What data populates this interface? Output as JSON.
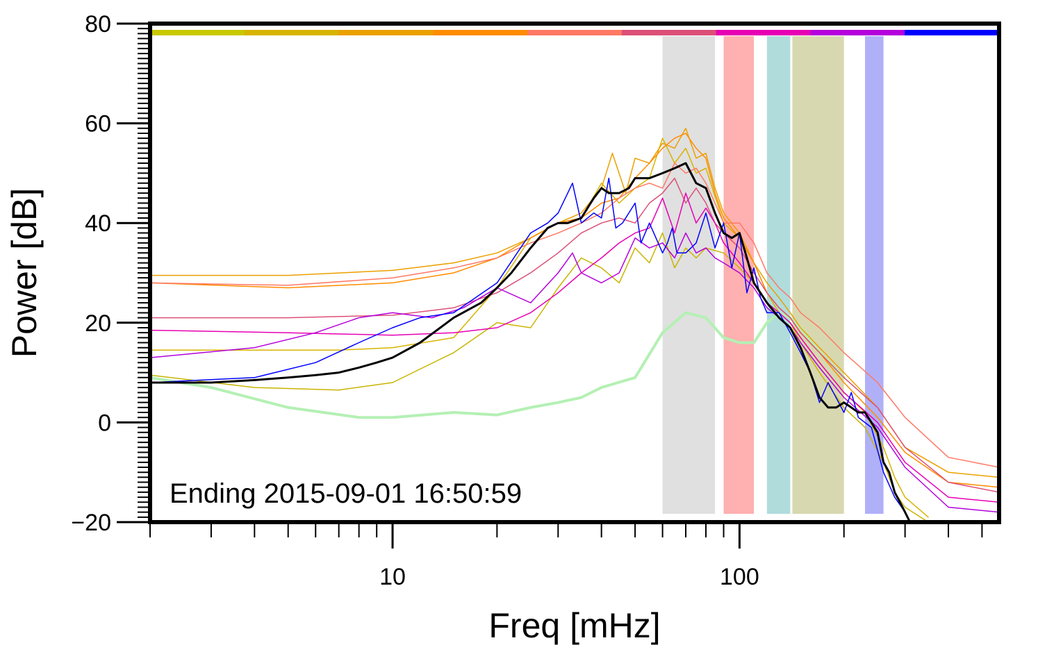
{
  "chart_data": {
    "type": "line",
    "xlabel": "Freq [mHz]",
    "ylabel": "Power [dB]",
    "x_scale": "log",
    "xlim": [
      2,
      560
    ],
    "ylim": [
      -20,
      80
    ],
    "x_tick_labels": [
      "10",
      "100"
    ],
    "y_tick_labels": [
      "80",
      "60",
      "40",
      "20",
      "0",
      "−20"
    ],
    "grid": false,
    "annotation": "Ending 2015-09-01 16:50:59",
    "time_colorbar": [
      "#c8c800",
      "#d7b400",
      "#eba000",
      "#ff8c00",
      "#ff7864",
      "#dc5078",
      "#e600b4",
      "#b400dc",
      "#0000ff"
    ],
    "bands": [
      {
        "x0": 60,
        "x1": 85,
        "color": "#e0e0e0"
      },
      {
        "x0": 90,
        "x1": 110,
        "color": "#ffb0b0"
      },
      {
        "x0": 120,
        "x1": 140,
        "color": "#b0dcdc"
      },
      {
        "x0": 142,
        "x1": 200,
        "color": "#d8d8b0"
      },
      {
        "x0": 230,
        "x1": 260,
        "color": "#b0b0f8"
      }
    ],
    "series": [
      {
        "color": "#b4f0b4",
        "width": 4,
        "x": [
          2,
          3,
          5,
          8,
          10,
          15,
          20,
          25,
          30,
          35,
          40,
          50,
          60,
          70,
          80,
          90,
          100,
          110,
          120,
          130,
          140,
          150,
          170,
          200
        ],
        "y": [
          9,
          7,
          3,
          1,
          1,
          2,
          1.5,
          3,
          4,
          5,
          7,
          9,
          18,
          22,
          21,
          17,
          16,
          16,
          20,
          22,
          21,
          19,
          14,
          9
        ]
      },
      {
        "color": "#c8b400",
        "width": 1.5,
        "x": [
          2,
          4,
          7,
          10,
          15,
          20,
          25,
          30,
          35,
          40,
          45,
          50,
          55,
          60,
          65,
          70,
          75,
          80,
          90,
          100,
          110,
          120,
          130,
          140,
          150,
          170,
          200,
          230,
          260,
          280,
          300,
          350
        ],
        "y": [
          9.5,
          7,
          6.5,
          8,
          14,
          20,
          19,
          27,
          33,
          31,
          28,
          35,
          32,
          38,
          31,
          35,
          33,
          35,
          34,
          31,
          28,
          24,
          22,
          20,
          16,
          10,
          3,
          -1,
          -8,
          -14,
          -17,
          -20
        ]
      },
      {
        "color": "#d7b400",
        "width": 1.5,
        "x": [
          2,
          4,
          7,
          10,
          15,
          20,
          25,
          30,
          35,
          40,
          45,
          50,
          55,
          60,
          65,
          70,
          75,
          80,
          90,
          100,
          110,
          120,
          130,
          140,
          150,
          170,
          200,
          230,
          260,
          280,
          300,
          350
        ],
        "y": [
          14.5,
          14.5,
          14.5,
          15,
          17,
          27,
          37,
          40,
          41,
          48,
          44,
          47,
          49,
          57,
          52,
          55,
          50,
          51,
          40,
          37,
          32,
          26,
          22,
          20,
          17,
          12,
          6,
          2,
          -5,
          -11,
          -15,
          -19
        ]
      },
      {
        "color": "#eba000",
        "width": 1.5,
        "x": [
          2,
          5,
          10,
          15,
          20,
          25,
          30,
          35,
          40,
          43,
          47,
          50,
          55,
          60,
          65,
          70,
          75,
          80,
          85,
          90,
          100,
          110,
          120,
          130,
          140,
          150,
          170,
          200,
          250,
          300,
          400,
          560
        ],
        "y": [
          29.5,
          29.5,
          30.5,
          32,
          34,
          37,
          40,
          42,
          47,
          54,
          46,
          53,
          52,
          56,
          55,
          59,
          53,
          54,
          47,
          42,
          38,
          32,
          28,
          25,
          22,
          19,
          15,
          10,
          3,
          -5,
          -10,
          -11
        ]
      },
      {
        "color": "#ff8c00",
        "width": 1.5,
        "x": [
          2,
          5,
          10,
          15,
          20,
          25,
          30,
          35,
          40,
          45,
          50,
          55,
          60,
          65,
          70,
          75,
          80,
          85,
          90,
          100,
          110,
          120,
          130,
          140,
          150,
          170,
          200,
          250,
          300,
          400,
          560
        ],
        "y": [
          28,
          27,
          28,
          30,
          33,
          37,
          40,
          41,
          44,
          45,
          49,
          52,
          55,
          57,
          58,
          55,
          53,
          46,
          41,
          37,
          32,
          26,
          23,
          21,
          18,
          14,
          8,
          1,
          -6,
          -12,
          -13
        ]
      },
      {
        "color": "#ff7864",
        "width": 1.5,
        "x": [
          2,
          5,
          10,
          15,
          20,
          25,
          30,
          35,
          40,
          45,
          50,
          55,
          60,
          65,
          70,
          75,
          80,
          85,
          90,
          100,
          110,
          120,
          130,
          140,
          150,
          170,
          200,
          250,
          300,
          400,
          560
        ],
        "y": [
          28,
          27.5,
          29,
          31,
          33,
          36,
          38,
          40,
          42,
          45,
          47,
          48,
          47,
          52,
          50,
          51,
          48,
          44,
          40,
          40,
          36,
          30,
          27,
          25,
          22,
          19,
          14,
          8,
          1,
          -7,
          -9
        ]
      },
      {
        "color": "#dc5078",
        "width": 1.5,
        "x": [
          2,
          5,
          10,
          15,
          20,
          25,
          30,
          35,
          40,
          45,
          50,
          55,
          60,
          65,
          70,
          75,
          80,
          85,
          90,
          100,
          110,
          120,
          130,
          140,
          150,
          170,
          200,
          250,
          300,
          400,
          560
        ],
        "y": [
          21,
          21,
          21.5,
          23,
          26,
          30,
          34,
          38,
          40,
          41,
          40,
          44,
          46,
          49,
          44,
          47,
          44,
          40,
          38,
          35,
          30,
          26,
          23,
          21,
          18,
          14,
          9,
          3,
          -5,
          -12,
          -14
        ]
      },
      {
        "color": "#e600b4",
        "width": 1.5,
        "x": [
          2,
          5,
          10,
          15,
          20,
          25,
          30,
          35,
          40,
          45,
          50,
          55,
          60,
          65,
          70,
          75,
          80,
          85,
          90,
          100,
          110,
          120,
          130,
          140,
          150,
          170,
          200,
          250,
          300,
          400,
          560
        ],
        "y": [
          18.5,
          18,
          17.5,
          18,
          19,
          22,
          26,
          30,
          33,
          36,
          38,
          39,
          45,
          38,
          46,
          40,
          43,
          40,
          36,
          32,
          28,
          24,
          22,
          20,
          17,
          12,
          6,
          0,
          -8,
          -15,
          -16
        ]
      },
      {
        "color": "#b400dc",
        "width": 1.5,
        "x": [
          2,
          4,
          6,
          8,
          10,
          13,
          16,
          20,
          25,
          30,
          33,
          35,
          40,
          45,
          50,
          55,
          60,
          65,
          70,
          75,
          80,
          85,
          90,
          100,
          110,
          120,
          130,
          140,
          150,
          170,
          200,
          250,
          300,
          400,
          560
        ],
        "y": [
          13,
          15,
          18,
          21,
          22,
          21,
          23,
          27,
          24,
          30,
          34,
          30,
          28,
          30,
          37,
          35,
          36,
          33,
          38,
          34,
          35,
          33,
          32,
          30,
          27,
          23,
          21,
          19,
          16,
          11,
          5,
          -1,
          -9,
          -17,
          -18
        ]
      },
      {
        "color": "#0000ff",
        "width": 1.5,
        "x": [
          2,
          4,
          6,
          8,
          10,
          12,
          15,
          20,
          25,
          28,
          30,
          33,
          35,
          38,
          40,
          42,
          44,
          46,
          50,
          52,
          55,
          60,
          62,
          64,
          66,
          70,
          75,
          80,
          85,
          90,
          95,
          100,
          105,
          110,
          115,
          120,
          130,
          140,
          150,
          160,
          170,
          180,
          200,
          210,
          220,
          240,
          260,
          280,
          300,
          310
        ],
        "y": [
          8,
          9,
          12,
          16,
          19,
          21,
          22,
          28,
          38,
          40,
          42,
          48,
          40,
          42,
          41,
          49,
          39,
          40,
          44,
          36,
          40,
          34,
          36,
          39,
          34,
          34,
          36,
          42,
          35,
          40,
          31,
          38,
          26,
          31,
          25,
          22,
          22,
          18,
          14,
          10,
          4,
          8,
          2,
          6,
          1,
          -1,
          -10,
          -15,
          -18,
          -20
        ]
      },
      {
        "color": "#000000",
        "width": 3,
        "x": [
          2,
          3,
          4,
          5,
          6,
          7,
          8,
          9,
          10,
          12,
          15,
          18,
          20,
          22,
          25,
          28,
          30,
          32,
          35,
          38,
          40,
          42,
          45,
          48,
          50,
          55,
          60,
          65,
          70,
          75,
          80,
          85,
          90,
          95,
          100,
          105,
          110,
          120,
          130,
          140,
          150,
          160,
          170,
          180,
          190,
          200,
          210,
          220,
          230,
          240,
          250,
          260,
          270,
          280,
          290,
          300,
          310
        ],
        "y": [
          8,
          8,
          8.5,
          9,
          9.5,
          10,
          11,
          12,
          13,
          16,
          21,
          24,
          27,
          30,
          35,
          39,
          40,
          40,
          41,
          45,
          47,
          46,
          46,
          47,
          49,
          49,
          50,
          51,
          52,
          48,
          47,
          42,
          38,
          37,
          38,
          33,
          28,
          24,
          21,
          19,
          15,
          10,
          5,
          3,
          3,
          4,
          3,
          2,
          2,
          0,
          -2,
          -8,
          -10,
          -14,
          -16,
          -18,
          -20
        ]
      }
    ]
  }
}
